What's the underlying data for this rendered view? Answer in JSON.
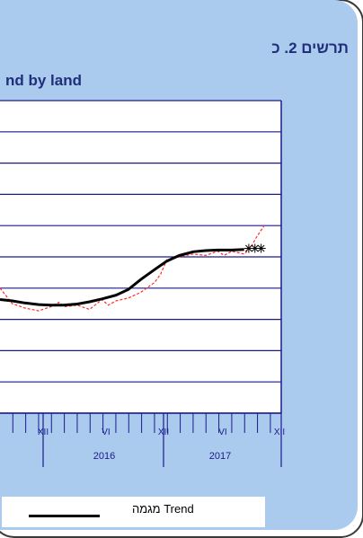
{
  "chart_data": {
    "type": "line",
    "title_he": "תרשים 2. כ",
    "title_en": "nd by land",
    "x_period_labels": [
      "2016",
      "2017"
    ],
    "x_tick_labels": [
      "XII",
      "VI",
      "XII",
      "VI",
      "XII"
    ],
    "grid": "horizontal",
    "y_gridline_count": 11,
    "series": [
      {
        "name": "Trend מגמה",
        "style": "solid-black-thick",
        "color": "#000000",
        "x": [
          2015.62,
          2015.7,
          2015.78,
          2015.87,
          2015.95,
          2016.03,
          2016.12,
          2016.2,
          2016.28,
          2016.37,
          2016.45,
          2016.53,
          2016.62,
          2016.7,
          2016.78,
          2016.87,
          2016.95,
          2017.03,
          2017.12,
          2017.2
        ],
        "y": [
          4.0,
          3.95,
          3.88,
          3.82,
          3.8,
          3.8,
          3.84,
          3.92,
          4.02,
          4.15,
          4.35,
          4.7,
          5.05,
          5.35,
          5.55,
          5.68,
          5.72,
          5.74,
          5.74,
          5.76
        ]
      },
      {
        "name": "",
        "style": "dashed-red",
        "color": "#ff2a2a",
        "x": [
          2015.62,
          2015.7,
          2015.78,
          2015.87,
          2015.95,
          2016.0,
          2016.04,
          2016.12,
          2016.2,
          2016.28,
          2016.32,
          2016.37,
          2016.45,
          2016.53,
          2016.62,
          2016.66,
          2016.7,
          2016.78,
          2016.87,
          2016.95,
          2017.03,
          2017.07,
          2017.12,
          2017.2,
          2017.24,
          2017.28,
          2017.33
        ],
        "y": [
          4.4,
          3.85,
          3.7,
          3.6,
          3.75,
          3.9,
          3.75,
          3.8,
          3.65,
          4.0,
          3.8,
          3.95,
          4.05,
          4.25,
          4.6,
          4.9,
          5.4,
          5.5,
          5.6,
          5.55,
          5.7,
          5.55,
          5.7,
          5.6,
          5.8,
          6.2,
          6.6
        ]
      },
      {
        "name": "",
        "style": "star-markers",
        "color": "#000000",
        "x": [
          2017.23,
          2017.27,
          2017.31
        ],
        "y": [
          5.8,
          5.8,
          5.8
        ]
      }
    ]
  },
  "legend": {
    "label": "Trend מגמה"
  }
}
